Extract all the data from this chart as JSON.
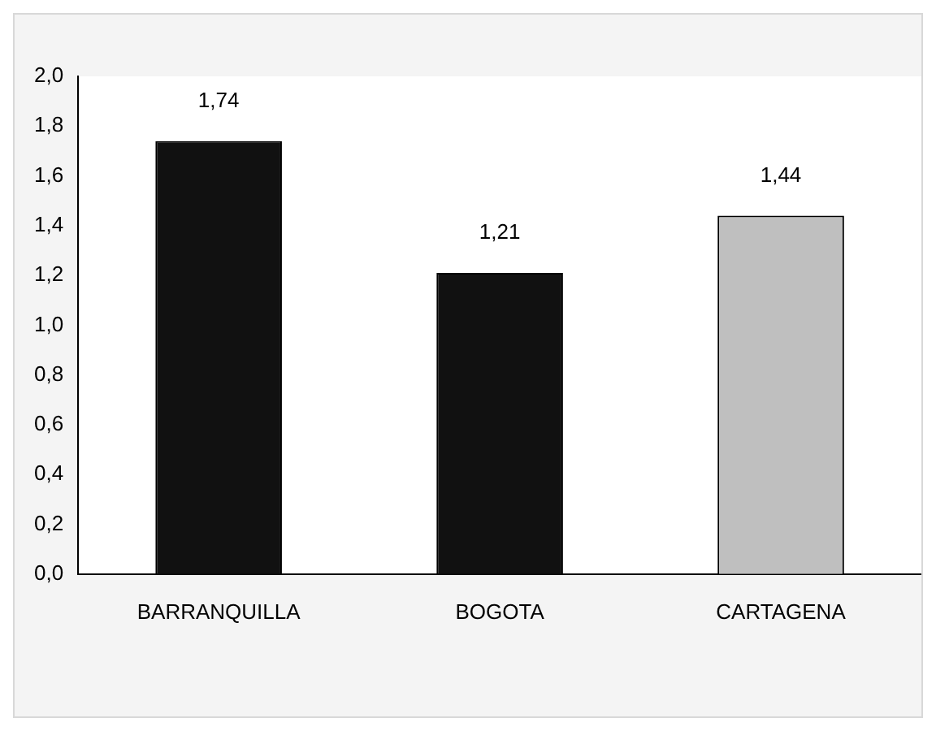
{
  "chart_data": {
    "type": "bar",
    "categories": [
      "BARRANQUILLA",
      "BOGOTA",
      "CARTAGENA"
    ],
    "values": [
      1.74,
      1.21,
      1.44
    ],
    "colors": [
      "#111111",
      "#111111",
      "#bfbfbf"
    ],
    "value_labels": [
      "1,74",
      "1,21",
      "1,44"
    ],
    "ylim": [
      0,
      2
    ],
    "yticks": [
      {
        "value": 0,
        "label": "0,0"
      },
      {
        "value": 0.2,
        "label": "0,2"
      },
      {
        "value": 0.4,
        "label": "0,4"
      },
      {
        "value": 0.6,
        "label": "0,6"
      },
      {
        "value": 0.8,
        "label": "0,8"
      },
      {
        "value": 1,
        "label": "1,0"
      },
      {
        "value": 1.2,
        "label": "1,2"
      },
      {
        "value": 1.4,
        "label": "1,4"
      },
      {
        "value": 1.6,
        "label": "1,6"
      },
      {
        "value": 1.8,
        "label": "1,8"
      },
      {
        "value": 2,
        "label": "2,0"
      }
    ],
    "grid": false,
    "legend": false
  }
}
